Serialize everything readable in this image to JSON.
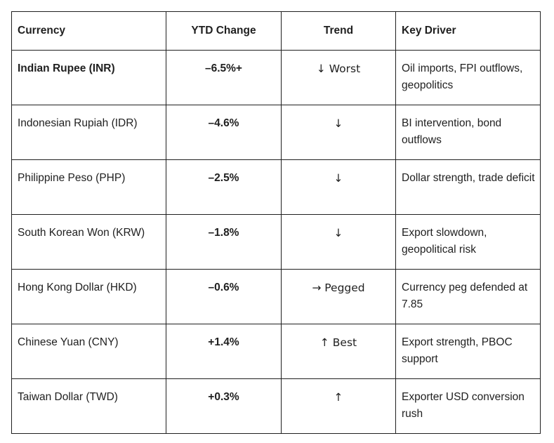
{
  "table": {
    "headers": [
      "Currency",
      "YTD Change",
      "Trend",
      "Key Driver"
    ],
    "rows": [
      {
        "currency": "Indian Rupee (INR)",
        "ytd": "–6.5%+",
        "trend": "↓ Worst",
        "driver": "Oil imports, FPI outflows, geopolitics",
        "highlight": true
      },
      {
        "currency": "Indonesian Rupiah (IDR)",
        "ytd": "–4.6%",
        "trend": "↓",
        "driver": "BI intervention, bond outflows"
      },
      {
        "currency": "Philippine Peso (PHP)",
        "ytd": "–2.5%",
        "trend": "↓",
        "driver": "Dollar strength, trade deficit"
      },
      {
        "currency": "South Korean Won (KRW)",
        "ytd": "–1.8%",
        "trend": "↓",
        "driver": "Export slowdown, geopolitical risk"
      },
      {
        "currency": "Hong Kong Dollar (HKD)",
        "ytd": "–0.6%",
        "trend": "→ Pegged",
        "driver": "Currency peg defended at 7.85"
      },
      {
        "currency": "Chinese Yuan (CNY)",
        "ytd": "+1.4%",
        "trend": "↑ Best",
        "driver": "Export strength, PBOC support"
      },
      {
        "currency": "Taiwan Dollar (TWD)",
        "ytd": "+0.3%",
        "trend": "↑",
        "driver": "Exporter USD conversion rush"
      }
    ]
  }
}
